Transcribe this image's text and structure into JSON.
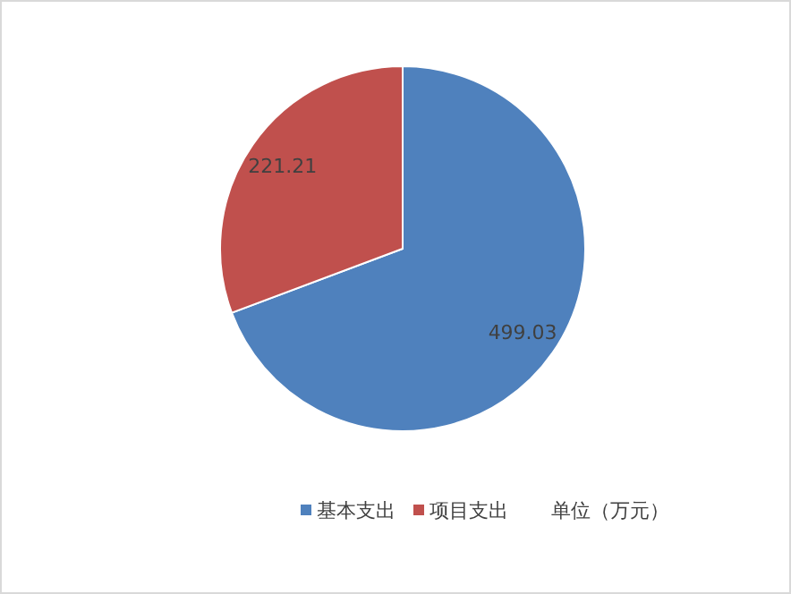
{
  "chart_data": {
    "type": "pie",
    "categories": [
      "基本支出",
      "项目支出"
    ],
    "values": [
      499.03,
      221.21
    ],
    "colors": [
      "#4f81bd",
      "#c0504d"
    ],
    "data_labels": true,
    "legend": "bottom",
    "annotations": [
      "单位（万元）"
    ]
  }
}
